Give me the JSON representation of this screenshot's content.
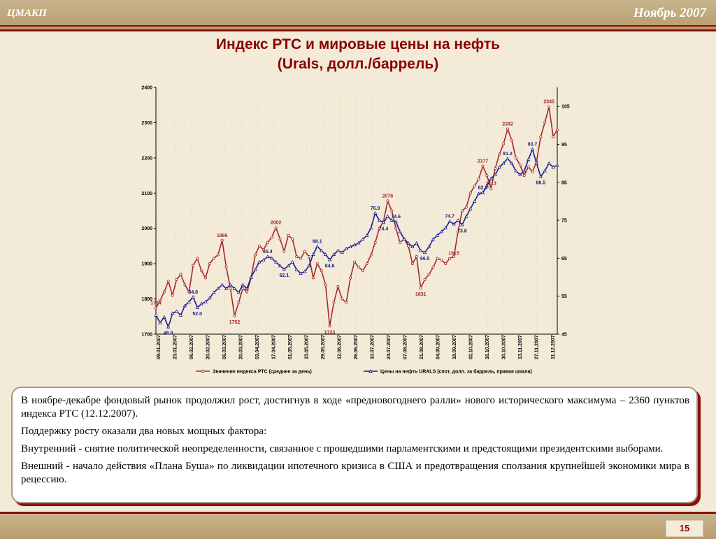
{
  "header": {
    "org": "ЦМАКП",
    "date": "Ноябрь 2007"
  },
  "title_line1": "Индекс РТС и мировые цены на нефть",
  "title_line2": "(Urals, долл./баррель)",
  "chart_data": {
    "type": "line",
    "x_ticks": [
      "09.01.2007",
      "23.01.2007",
      "06.02.2007",
      "20.02.2007",
      "06.03.2007",
      "20.03.2007",
      "03.04.2007",
      "17.04.2007",
      "01.05.2007",
      "15.05.2007",
      "29.05.2007",
      "12.06.2007",
      "26.06.2007",
      "10.07.2007",
      "24.07.2007",
      "07.08.2007",
      "21.08.2007",
      "04.09.2007",
      "18.09.2007",
      "02.10.2007",
      "16.10.2007",
      "30.10.2007",
      "13.11.2007",
      "27.11.2007",
      "11.12.2007"
    ],
    "y_left": {
      "min": 1700,
      "max": 2400,
      "ticks": [
        "1700",
        "1800",
        "1900",
        "2000",
        "2100",
        "2200",
        "2300",
        "2400"
      ]
    },
    "y_right": {
      "min": 45,
      "max": 110,
      "ticks": [
        "45",
        "55",
        "65",
        "75",
        "85",
        "95",
        "105"
      ]
    },
    "series": [
      {
        "name": "Значение индекса РТС (среднее за день)",
        "color": "#a52a2a",
        "marker": "circle",
        "points": [
          [
            0,
            1774
          ],
          [
            1,
            1795
          ],
          [
            2,
            1820
          ],
          [
            3,
            1850
          ],
          [
            4,
            1810
          ],
          [
            5,
            1855
          ],
          [
            6,
            1870
          ],
          [
            7,
            1840
          ],
          [
            8,
            1820
          ],
          [
            9,
            1895
          ],
          [
            10,
            1915
          ],
          [
            11,
            1880
          ],
          [
            12,
            1860
          ],
          [
            13,
            1900
          ],
          [
            14,
            1915
          ],
          [
            15,
            1925
          ],
          [
            16,
            1966
          ],
          [
            17,
            1890
          ],
          [
            18,
            1830
          ],
          [
            19,
            1752
          ],
          [
            20,
            1790
          ],
          [
            21,
            1830
          ],
          [
            22,
            1820
          ],
          [
            23,
            1860
          ],
          [
            24,
            1925
          ],
          [
            25,
            1950
          ],
          [
            26,
            1940
          ],
          [
            27,
            1960
          ],
          [
            28,
            1975
          ],
          [
            29,
            2002
          ],
          [
            30,
            1970
          ],
          [
            31,
            1935
          ],
          [
            32,
            1980
          ],
          [
            33,
            1970
          ],
          [
            34,
            1920
          ],
          [
            35,
            1915
          ],
          [
            36,
            1935
          ],
          [
            37,
            1920
          ],
          [
            38,
            1860
          ],
          [
            39,
            1900
          ],
          [
            40,
            1880
          ],
          [
            41,
            1840
          ],
          [
            42,
            1723
          ],
          [
            43,
            1790
          ],
          [
            44,
            1835
          ],
          [
            45,
            1800
          ],
          [
            46,
            1790
          ],
          [
            47,
            1860
          ],
          [
            48,
            1905
          ],
          [
            49,
            1890
          ],
          [
            50,
            1880
          ],
          [
            51,
            1900
          ],
          [
            52,
            1925
          ],
          [
            53,
            1960
          ],
          [
            54,
            2000
          ],
          [
            55,
            2020
          ],
          [
            56,
            2078
          ],
          [
            57,
            2050
          ],
          [
            58,
            2000
          ],
          [
            59,
            1960
          ],
          [
            60,
            1970
          ],
          [
            61,
            1950
          ],
          [
            62,
            1900
          ],
          [
            63,
            1920
          ],
          [
            64,
            1831
          ],
          [
            65,
            1855
          ],
          [
            66,
            1870
          ],
          [
            67,
            1890
          ],
          [
            68,
            1915
          ],
          [
            69,
            1910
          ],
          [
            70,
            1900
          ],
          [
            71,
            1915
          ],
          [
            72,
            1920
          ],
          [
            73,
            1990
          ],
          [
            74,
            2050
          ],
          [
            75,
            2060
          ],
          [
            76,
            2100
          ],
          [
            77,
            2120
          ],
          [
            78,
            2140
          ],
          [
            79,
            2177
          ],
          [
            80,
            2150
          ],
          [
            81,
            2113
          ],
          [
            82,
            2170
          ],
          [
            83,
            2210
          ],
          [
            84,
            2240
          ],
          [
            85,
            2282
          ],
          [
            86,
            2250
          ],
          [
            87,
            2200
          ],
          [
            88,
            2180
          ],
          [
            89,
            2150
          ],
          [
            90,
            2175
          ],
          [
            91,
            2160
          ],
          [
            92,
            2190
          ],
          [
            93,
            2260
          ],
          [
            94,
            2300
          ],
          [
            95,
            2345
          ],
          [
            96,
            2260
          ],
          [
            97,
            2280
          ]
        ]
      },
      {
        "name": "Цены на нефть URALS (спот, долл. за баррель, правая шкала)",
        "color": "#1c1c8c",
        "marker": "triangle",
        "points": [
          [
            0,
            50
          ],
          [
            1,
            48
          ],
          [
            2,
            49.5
          ],
          [
            3,
            46.9
          ],
          [
            4,
            50.5
          ],
          [
            5,
            51
          ],
          [
            6,
            50
          ],
          [
            7,
            52.5
          ],
          [
            8,
            53.5
          ],
          [
            9,
            54.8
          ],
          [
            10,
            52
          ],
          [
            11,
            53
          ],
          [
            12,
            53.5
          ],
          [
            13,
            54.5
          ],
          [
            14,
            56
          ],
          [
            15,
            57
          ],
          [
            16,
            58
          ],
          [
            17,
            57
          ],
          [
            18,
            58
          ],
          [
            19,
            57
          ],
          [
            20,
            56
          ],
          [
            21,
            58
          ],
          [
            22,
            57
          ],
          [
            23,
            60
          ],
          [
            24,
            62
          ],
          [
            25,
            64
          ],
          [
            26,
            64.5
          ],
          [
            27,
            65.4
          ],
          [
            28,
            65
          ],
          [
            29,
            64
          ],
          [
            30,
            63
          ],
          [
            31,
            62.1
          ],
          [
            32,
            63
          ],
          [
            33,
            64
          ],
          [
            34,
            62
          ],
          [
            35,
            61
          ],
          [
            36,
            61.5
          ],
          [
            37,
            63
          ],
          [
            38,
            66
          ],
          [
            39,
            68.1
          ],
          [
            40,
            67
          ],
          [
            41,
            66
          ],
          [
            42,
            64.6
          ],
          [
            43,
            66
          ],
          [
            44,
            67
          ],
          [
            45,
            66.5
          ],
          [
            46,
            67.5
          ],
          [
            47,
            68
          ],
          [
            48,
            68.5
          ],
          [
            49,
            69
          ],
          [
            50,
            70
          ],
          [
            51,
            71
          ],
          [
            52,
            73
          ],
          [
            53,
            76.9
          ],
          [
            54,
            75
          ],
          [
            55,
            74.4
          ],
          [
            56,
            76
          ],
          [
            57,
            75
          ],
          [
            58,
            74.6
          ],
          [
            59,
            72
          ],
          [
            60,
            70
          ],
          [
            61,
            69
          ],
          [
            62,
            68
          ],
          [
            63,
            69
          ],
          [
            64,
            67
          ],
          [
            65,
            66.5
          ],
          [
            66,
            68
          ],
          [
            67,
            70
          ],
          [
            68,
            71
          ],
          [
            69,
            72
          ],
          [
            70,
            73
          ],
          [
            71,
            74.7
          ],
          [
            72,
            74
          ],
          [
            73,
            75
          ],
          [
            74,
            73.8
          ],
          [
            75,
            76
          ],
          [
            76,
            78
          ],
          [
            77,
            80
          ],
          [
            78,
            82
          ],
          [
            79,
            82.3
          ],
          [
            80,
            84
          ],
          [
            81,
            86
          ],
          [
            82,
            87
          ],
          [
            83,
            89
          ],
          [
            84,
            90
          ],
          [
            85,
            91.2
          ],
          [
            86,
            90
          ],
          [
            87,
            88
          ],
          [
            88,
            87
          ],
          [
            89,
            88
          ],
          [
            90,
            91
          ],
          [
            91,
            93.7
          ],
          [
            92,
            90
          ],
          [
            93,
            86.5
          ],
          [
            94,
            88
          ],
          [
            95,
            90
          ],
          [
            96,
            89
          ],
          [
            97,
            89.5
          ]
        ]
      }
    ],
    "annotations": {
      "rts": [
        [
          0,
          1774,
          "1774"
        ],
        [
          16,
          1966,
          "1966"
        ],
        [
          19,
          1752,
          "1752"
        ],
        [
          29,
          2002,
          "2002"
        ],
        [
          42,
          1723,
          "1723"
        ],
        [
          56,
          2078,
          "2078"
        ],
        [
          64,
          1831,
          "1831"
        ],
        [
          72,
          1915,
          "1915"
        ],
        [
          79,
          2177,
          "2177"
        ],
        [
          81,
          2113,
          "2113"
        ],
        [
          85,
          2282,
          "2282"
        ],
        [
          95,
          2345,
          "2345"
        ]
      ],
      "urals": [
        [
          3,
          46.9,
          "46.9"
        ],
        [
          9,
          54.8,
          "54.8"
        ],
        [
          10,
          52.0,
          "52.0"
        ],
        [
          27,
          65.4,
          "65.4"
        ],
        [
          31,
          62.1,
          "62.1"
        ],
        [
          39,
          68.1,
          "68.1"
        ],
        [
          42,
          64.6,
          "64.6"
        ],
        [
          53,
          76.9,
          "76.9"
        ],
        [
          55,
          74.4,
          "74.4"
        ],
        [
          58,
          74.6,
          "74.6"
        ],
        [
          65,
          66.5,
          "66.5"
        ],
        [
          71,
          74.7,
          "74.7"
        ],
        [
          74,
          73.8,
          "73.8"
        ],
        [
          79,
          82.3,
          "82.3"
        ],
        [
          85,
          91.2,
          "91.2"
        ],
        [
          91,
          93.7,
          "93.7"
        ],
        [
          93,
          86.5,
          "86.5"
        ]
      ]
    },
    "legend_position": "bottom"
  },
  "paragraphs": [
    "В ноябре-декабре фондовый рынок продолжил рост, достигнув в ходе «предновогоднего ралли» нового исторического максимума – 2360 пунктов индекса РТС (12.12.2007).",
    "Поддержку росту оказали два новых мощных фактора:",
    "Внутренний -  снятие политической неопределенности, связанное с прошедшими парламентскими и предстоящими президентскими выборами.",
    "Внешний - начало действия «Плана Буша» по ликвидации ипотечного кризиса в США и предотвращения сползания крупнейшей экономики мира в рецессию."
  ],
  "page_number": "15"
}
